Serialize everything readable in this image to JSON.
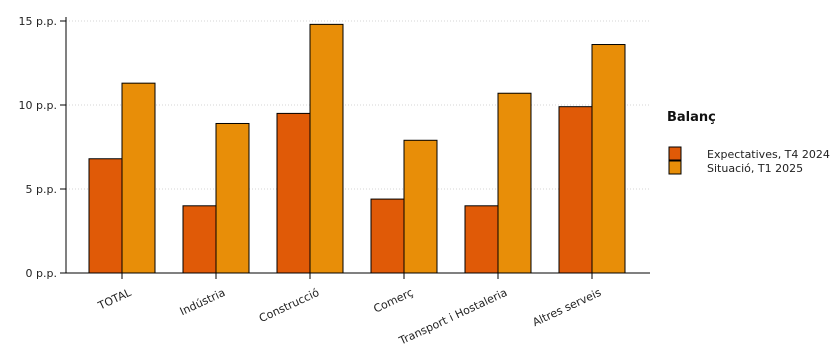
{
  "chart_data": {
    "type": "bar",
    "categories": [
      "TOTAL",
      "Indústria",
      "Construcció",
      "Comerç",
      "Transport i Hostaleria",
      "Altres serveis"
    ],
    "series": [
      {
        "name": "Expectatives, T4 2024",
        "color": "#e05a07",
        "values": [
          6.8,
          4.0,
          9.5,
          4.4,
          4.0,
          9.9
        ]
      },
      {
        "name": "Situació, T1 2025",
        "color": "#e88e08",
        "values": [
          11.3,
          8.9,
          14.8,
          7.9,
          10.7,
          13.6
        ]
      }
    ],
    "ylim": [
      0,
      15.5
    ],
    "yticks": [
      {
        "value": 0,
        "label": "0 p.p."
      },
      {
        "value": 5,
        "label": "5 p.p."
      },
      {
        "value": 10,
        "label": "10 p.p."
      },
      {
        "value": 15,
        "label": "15 p.p."
      }
    ],
    "grid": true,
    "legend": {
      "title": "Balanç",
      "position": "right"
    }
  }
}
